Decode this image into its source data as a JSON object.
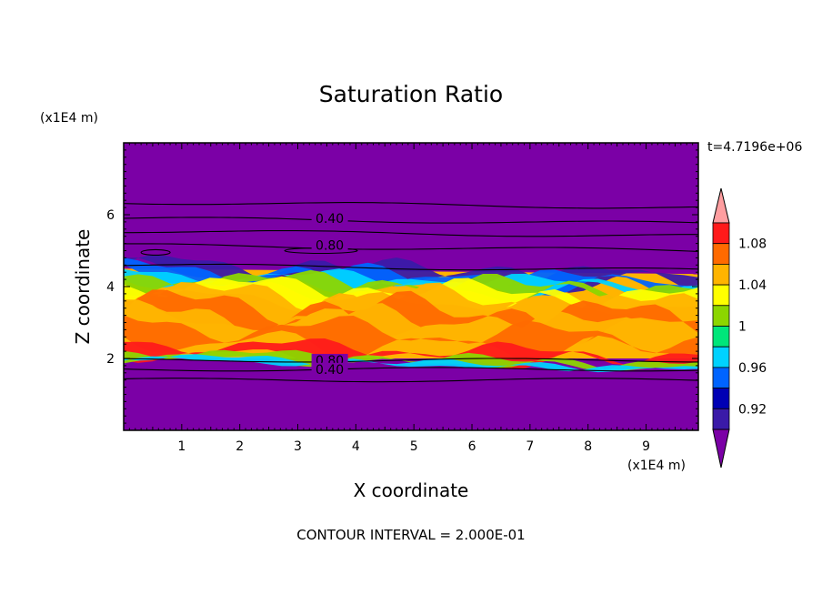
{
  "chart_data": {
    "type": "heatmap",
    "title": "Saturation Ratio",
    "xlabel": "X coordinate",
    "ylabel": "Z coordinate",
    "x_units": "(x1E4 m)",
    "y_units": "(x1E4 m)",
    "time_label": "t=4.7196e+06",
    "footer": "CONTOUR INTERVAL = 2.000E-01",
    "xlim": [
      0,
      9.9
    ],
    "ylim": [
      0,
      8
    ],
    "x_ticks": [
      "1",
      "2",
      "3",
      "4",
      "5",
      "6",
      "7",
      "8",
      "9"
    ],
    "y_ticks": [
      "2",
      "4",
      "6"
    ],
    "colorbar": {
      "levels": [
        0.9,
        0.92,
        0.94,
        0.96,
        0.98,
        1.0,
        1.02,
        1.04,
        1.06,
        1.08,
        1.1
      ],
      "labels": [
        "0.92",
        "0.96",
        "1",
        "1.04",
        "1.08"
      ],
      "colors": [
        "#7b00a6",
        "#3a1aa8",
        "#0000b4",
        "#0064ff",
        "#00d2ff",
        "#00e67a",
        "#8cd600",
        "#ffff00",
        "#ffb400",
        "#ff6a00",
        "#ff1a1a",
        "#ff9ea0"
      ],
      "extend": "both"
    },
    "background_color": "#7b00a6",
    "contours": [
      {
        "level": "0.40",
        "label": "0.40",
        "z": 5.9
      },
      {
        "level": "0.80",
        "label": "0.80",
        "z": 5.15
      },
      {
        "level": "0.80",
        "label": "0.80",
        "z": 1.95
      },
      {
        "level": "0.40",
        "label": "0.40",
        "z": 1.7
      }
    ],
    "moist_layer": {
      "z_bottom": 2.0,
      "z_top": 4.5,
      "peak_value": 1.1
    }
  }
}
